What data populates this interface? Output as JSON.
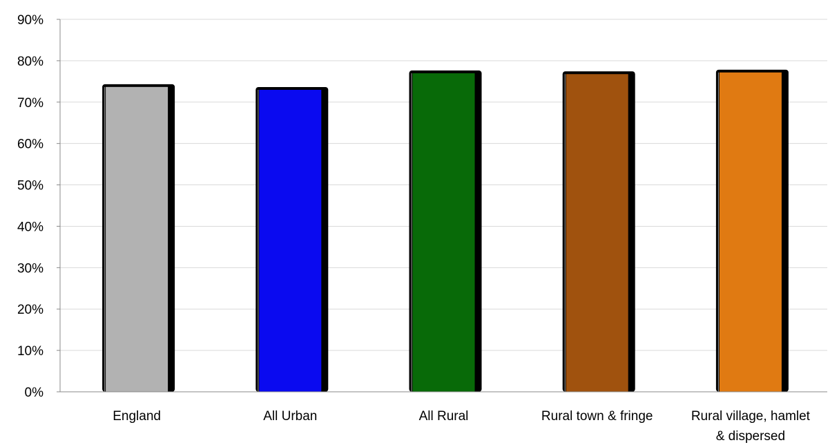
{
  "chart_data": {
    "type": "bar",
    "categories": [
      [
        "England"
      ],
      [
        "All Urban"
      ],
      [
        "All Rural"
      ],
      [
        "Rural town & fringe"
      ],
      [
        "Rural village, hamlet",
        "& dispersed"
      ]
    ],
    "values": [
      0.74,
      0.733,
      0.773,
      0.771,
      0.775
    ],
    "colors": [
      "#b2b2b2",
      "#0a0af0",
      "#086a08",
      "#a0520e",
      "#e07a12"
    ],
    "ylim": [
      0,
      0.9
    ],
    "yticks": [
      "0%",
      "10%",
      "20%",
      "30%",
      "40%",
      "50%",
      "60%",
      "70%",
      "80%",
      "90%"
    ],
    "grid": true,
    "legend": "none",
    "title": "",
    "xlabel": "",
    "ylabel": ""
  }
}
